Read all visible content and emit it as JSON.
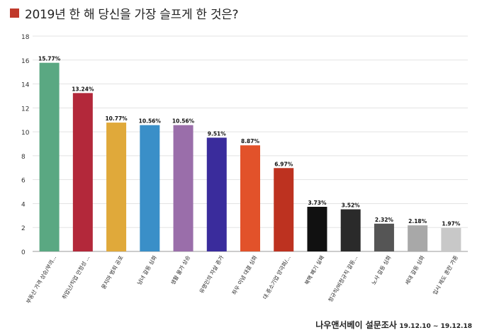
{
  "header": {
    "title": "2019년 한 해 당신을 가장 슬프게 한 것은?",
    "accent_color": "#c0392b"
  },
  "footer": {
    "org": "나우앤서베이 설문조사",
    "date": "19.12.10 ~ 19.12.18"
  },
  "chart_data": {
    "type": "bar",
    "title": "2019년 한 해 당신을 가장 슬프게 한 것은?",
    "ylim": [
      0,
      18
    ],
    "yticks": [
      0,
      2,
      4,
      6,
      8,
      10,
      12,
      14,
      16,
      18
    ],
    "grid": true,
    "categories": [
      "부동산 가격 상승/부의...",
      "취업난/직업 안정성 ...",
      "묻지마 범죄 공포",
      "남녀 갈등 심화",
      "생활 물가 상승",
      "유명인의 자살 증가",
      "좌우 이념 대결 심화",
      "대.중소기업 양극화/...",
      "북핵 폐기 실패",
      "정규직/비정규직 갈등...",
      "노사 갈등 심화",
      "세대 갈등 심화",
      "입시 제도 혼란 가중"
    ],
    "values": [
      15.77,
      13.24,
      10.77,
      10.56,
      10.56,
      9.51,
      8.87,
      6.97,
      3.73,
      3.52,
      2.32,
      2.18,
      1.97
    ],
    "value_labels": [
      "15.77%",
      "13.24%",
      "10.77%",
      "10.56%",
      "10.56%",
      "9.51%",
      "8.87%",
      "6.97%",
      "3.73%",
      "3.52%",
      "2.32%",
      "2.18%",
      "1.97%"
    ],
    "colors": [
      "#5aa882",
      "#b3283a",
      "#e0a93a",
      "#3a8fc8",
      "#9a6eaa",
      "#3a2c9c",
      "#e2522a",
      "#bd3220",
      "#111111",
      "#2a2a2a",
      "#555555",
      "#a8a8a8",
      "#c8c8c8"
    ]
  }
}
